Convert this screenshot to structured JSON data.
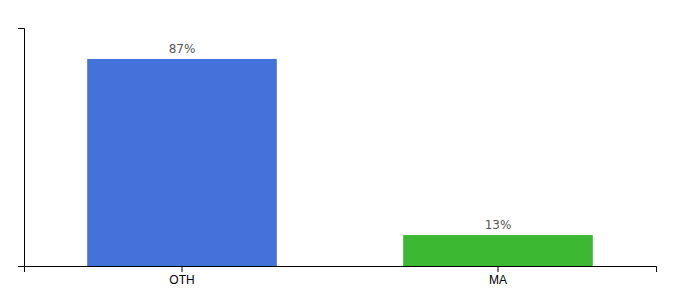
{
  "chart_data": {
    "type": "bar",
    "categories": [
      "OTH",
      "MA"
    ],
    "values": [
      87,
      13
    ],
    "value_labels": [
      "87%",
      "13%"
    ],
    "colors": [
      "#4472db",
      "#3cb832"
    ],
    "ylim": [
      0,
      100
    ],
    "yticks": [],
    "grid": false,
    "data_labels": true,
    "tick_labels": "x"
  }
}
